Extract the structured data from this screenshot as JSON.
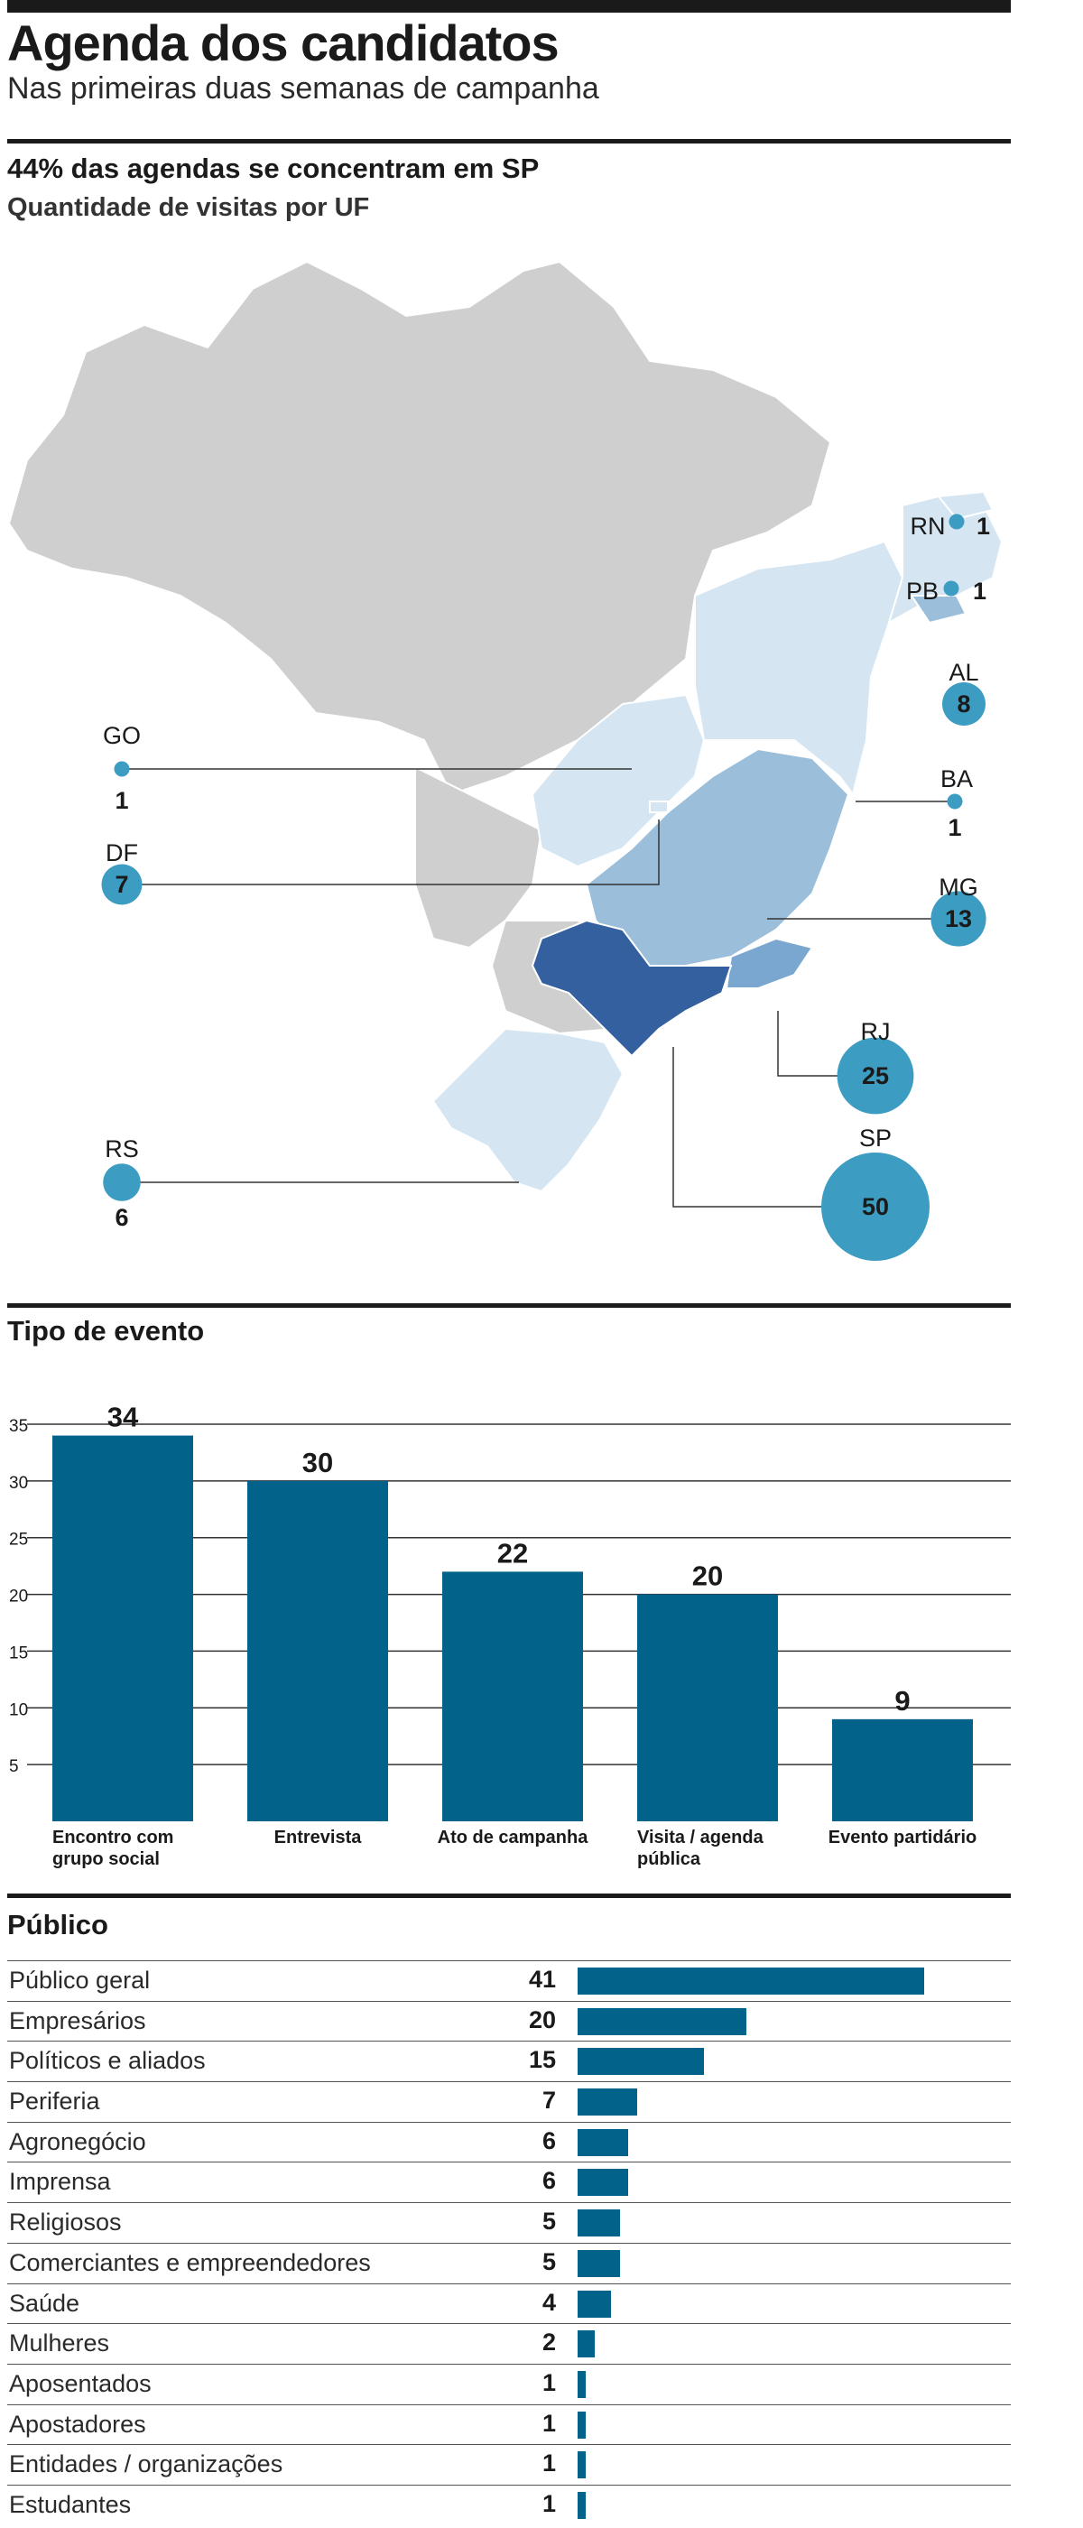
{
  "header": {
    "title": "Agenda dos candidatos",
    "subtitle": "Nas primeiras duas semanas de campanha"
  },
  "map_section": {
    "title": "44% das agendas se concentram em SP",
    "subtitle": "Quantidade de visitas por UF"
  },
  "event_section": {
    "title": "Tipo de evento"
  },
  "public_section": {
    "title": "Público"
  },
  "colors": {
    "bar": "#03628a",
    "bubble": "#3d9cc2",
    "state_base": "#cfcfcf",
    "state_light": "#d5e6f2",
    "state_mid": "#9bbfda",
    "state_mid2": "#7aa7cf",
    "state_dark": "#34609f"
  },
  "chart_data": [
    {
      "type": "map",
      "title": "44% das agendas se concentram em SP",
      "subtitle": "Quantidade de visitas por UF",
      "series": [
        {
          "name": "Quantidade de visitas",
          "states": [
            "SP",
            "RJ",
            "MG",
            "AL",
            "DF",
            "RS",
            "GO",
            "BA",
            "RN",
            "PB"
          ],
          "values": [
            50,
            25,
            13,
            8,
            7,
            6,
            1,
            1,
            1,
            1
          ]
        }
      ]
    },
    {
      "type": "bar",
      "title": "Tipo de evento",
      "categories": [
        [
          "Encontro com",
          "grupo social"
        ],
        [
          "Entrevista"
        ],
        [
          "Ato de campanha"
        ],
        [
          "Visita / agenda",
          "pública"
        ],
        [
          "Evento partidário"
        ]
      ],
      "values": [
        34,
        30,
        22,
        20,
        9
      ],
      "ylim": [
        0,
        35
      ],
      "yticks": [
        5,
        10,
        15,
        20,
        25,
        30,
        35
      ],
      "grid": true
    },
    {
      "type": "bar",
      "orientation": "horizontal",
      "title": "Público",
      "categories": [
        "Público geral",
        "Empresários",
        "Políticos e aliados",
        "Periferia",
        "Agronegócio",
        "Imprensa",
        "Religiosos",
        "Comerciantes e empreendedores",
        "Saúde",
        "Mulheres",
        "Aposentados",
        "Apostadores",
        "Entidades / organizações",
        "Estudantes"
      ],
      "values": [
        41,
        20,
        15,
        7,
        6,
        6,
        5,
        5,
        4,
        2,
        1,
        1,
        1,
        1
      ]
    }
  ]
}
